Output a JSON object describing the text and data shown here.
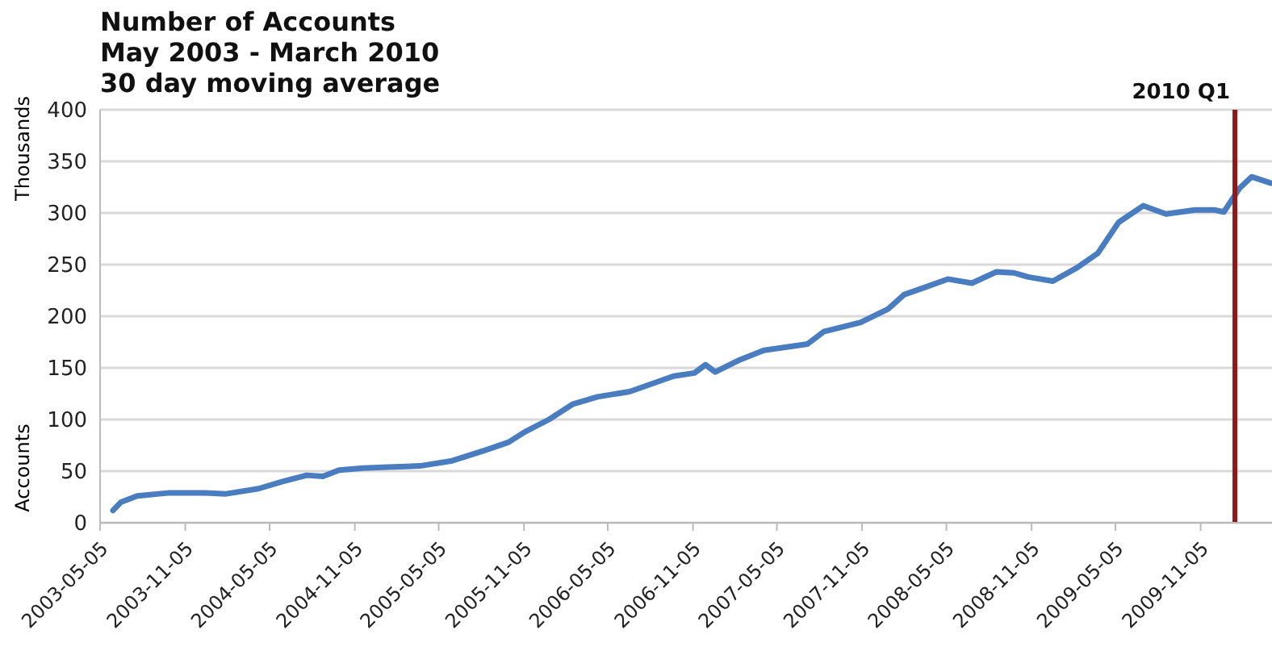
{
  "chart_data": {
    "type": "line",
    "title": "Number of Accounts",
    "subtitle": "May 2003 - March 2010",
    "annotations": [
      "30 day moving average",
      "Thousands"
    ],
    "ylabel": "Accounts",
    "x": [
      "2003-06-02",
      "2003-06-19",
      "2003-07-24",
      "2003-10-02",
      "2003-12-11",
      "2004-02-01",
      "2004-04-11",
      "2004-06-02",
      "2004-07-24",
      "2004-08-28",
      "2004-10-02",
      "2004-11-23",
      "2005-01-15",
      "2005-03-25",
      "2005-06-03",
      "2005-08-12",
      "2005-10-03",
      "2005-11-07",
      "2005-12-29",
      "2006-02-19",
      "2006-04-13",
      "2006-06-21",
      "2006-09-24",
      "2006-11-08",
      "2006-12-02",
      "2006-12-23",
      "2007-02-10",
      "2007-04-07",
      "2007-07-10",
      "2007-08-14",
      "2007-11-02",
      "2007-12-31",
      "2008-02-04",
      "2008-03-20",
      "2008-05-08",
      "2008-06-29",
      "2008-08-21",
      "2008-09-28",
      "2008-10-29",
      "2008-12-21",
      "2009-02-11",
      "2009-03-28",
      "2009-05-12",
      "2009-07-04",
      "2009-08-22",
      "2009-10-24",
      "2009-12-04",
      "2009-12-25",
      "2010-01-28",
      "2010-02-23",
      "2010-04-05"
    ],
    "series": [
      {
        "color": "#4a7cc0",
        "values": [
          12,
          20,
          26,
          29,
          29,
          28,
          33,
          40,
          46,
          45,
          51,
          53,
          54,
          55,
          60,
          70,
          78,
          88,
          100,
          115,
          122,
          127,
          142,
          145,
          153,
          146,
          157,
          167,
          173,
          185,
          194,
          207,
          221,
          228,
          236,
          232,
          243,
          242,
          238,
          234,
          247,
          261,
          291,
          307,
          299,
          303,
          303,
          301,
          324,
          335,
          329
        ]
      }
    ],
    "xlim": [
      "2003-05-05",
      "2010-04-08"
    ],
    "xticks": [
      "2003-05-05",
      "2003-11-05",
      "2004-05-05",
      "2004-11-05",
      "2005-05-05",
      "2005-11-05",
      "2006-05-05",
      "2006-11-05",
      "2007-05-05",
      "2007-11-05",
      "2008-05-05",
      "2008-11-05",
      "2009-05-05",
      "2009-11-05"
    ],
    "ylim": [
      0,
      400
    ],
    "yticks": [
      0,
      50,
      100,
      150,
      200,
      250,
      300,
      350,
      400
    ],
    "ref_lines": [
      {
        "axis": "x",
        "value": "2010-01-18",
        "label": "2010 Q1",
        "color": "#8b1a1a"
      }
    ],
    "grid": "y",
    "legend": false,
    "marker": "none",
    "line_style": "solid"
  }
}
